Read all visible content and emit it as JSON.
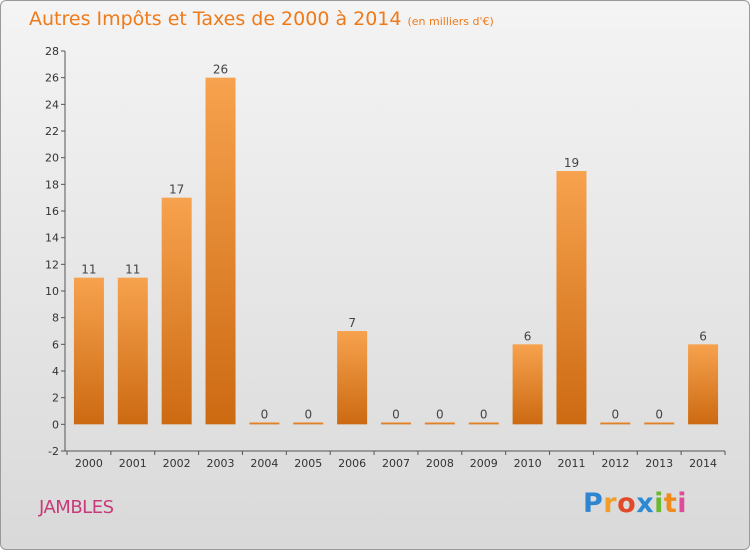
{
  "title": {
    "main": "Autres Impôts et Taxes de 2000 à 2014",
    "unit": "(en milliers d'€)"
  },
  "commune": "JAMBLES",
  "logo": {
    "text": "Proxiti"
  },
  "colors": {
    "bar_light": "#f7a24e",
    "bar_dark": "#cc6a12",
    "title": "#ee7a1a",
    "commune": "#c83a7a"
  },
  "chart_data": {
    "type": "bar",
    "categories": [
      "2000",
      "2001",
      "2002",
      "2003",
      "2004",
      "2005",
      "2006",
      "2007",
      "2008",
      "2009",
      "2010",
      "2011",
      "2012",
      "2013",
      "2014"
    ],
    "values": [
      11,
      11,
      17,
      26,
      0,
      0,
      7,
      0,
      0,
      0,
      6,
      19,
      0,
      0,
      6
    ],
    "data_labels": [
      "11",
      "11",
      "17",
      "26",
      "0",
      "0",
      "7",
      "0",
      "0",
      "0",
      "6",
      "19",
      "0",
      "0",
      "6"
    ],
    "title": "Autres Impôts et Taxes de 2000 à 2014",
    "subtitle": "(en milliers d'€)",
    "xlabel": "",
    "ylabel": "",
    "ylim": [
      -2,
      28
    ],
    "yticks": [
      "-2",
      "0",
      "2",
      "4",
      "6",
      "8",
      "10",
      "12",
      "14",
      "16",
      "18",
      "20",
      "22",
      "24",
      "26",
      "28"
    ],
    "grid": false
  }
}
